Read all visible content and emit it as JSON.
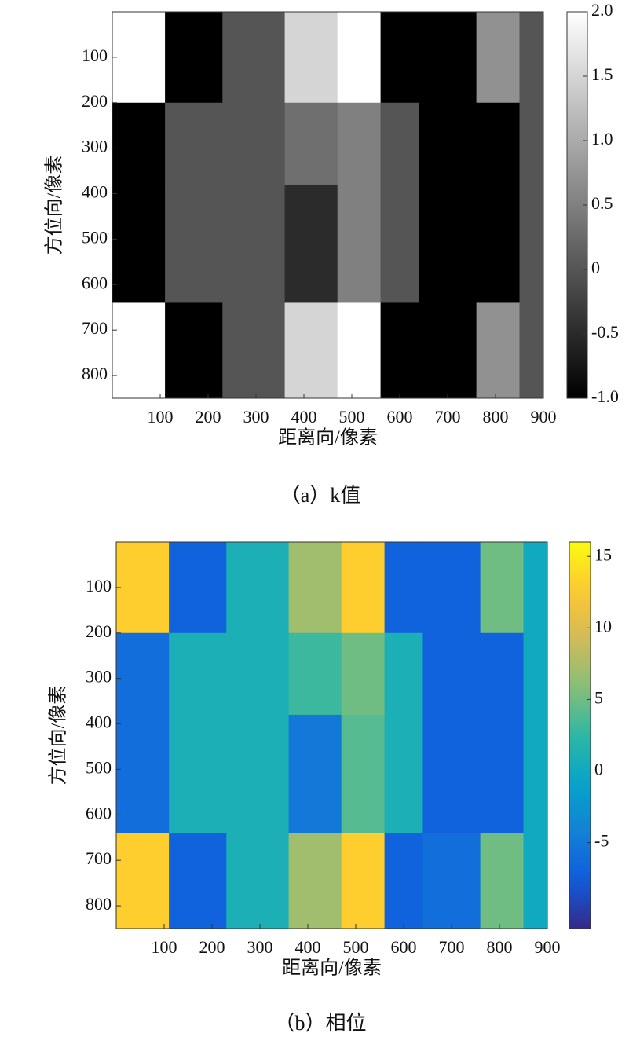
{
  "chart_data": [
    {
      "type": "heatmap",
      "caption": "（a）k值",
      "xlabel": "距离向/像素",
      "ylabel": "方位向/像素",
      "colormap": "gray",
      "y_reversed": true,
      "xlim": [
        0,
        900
      ],
      "xticks": [
        100,
        200,
        300,
        400,
        500,
        600,
        700,
        800,
        900
      ],
      "ylim": [
        0,
        850
      ],
      "yticks": [
        100,
        200,
        300,
        400,
        500,
        600,
        700,
        800
      ],
      "zlim": [
        -1,
        2
      ],
      "zticks": [
        {
          "value": -1,
          "label": "-1.0"
        },
        -0.5,
        0,
        0.5,
        {
          "value": 1,
          "label": "1.0"
        },
        1.5,
        {
          "value": 2,
          "label": "2.0"
        }
      ],
      "x_edges": [
        0,
        110,
        230,
        360,
        470,
        560,
        640,
        760,
        850,
        900
      ],
      "y_edges": [
        0,
        200,
        380,
        640,
        850
      ],
      "z": [
        [
          2,
          -1,
          0,
          1.5,
          2,
          -1,
          -1,
          0.7,
          0
        ],
        [
          -1,
          0,
          0,
          0.3,
          0.5,
          0,
          -1,
          -1,
          0
        ],
        [
          -1,
          0,
          0,
          -0.5,
          0.5,
          0,
          -1,
          -1,
          0
        ],
        [
          2,
          -1,
          0,
          1.5,
          2,
          -1,
          -1,
          0.7,
          0
        ]
      ]
    },
    {
      "type": "heatmap",
      "caption": "（b）相位",
      "xlabel": "距离向/像素",
      "ylabel": "方位向/像素",
      "colormap": "parula",
      "y_reversed": true,
      "xlim": [
        0,
        900
      ],
      "xticks": [
        100,
        200,
        300,
        400,
        500,
        600,
        700,
        800,
        900
      ],
      "ylim": [
        0,
        850
      ],
      "yticks": [
        100,
        200,
        300,
        400,
        500,
        600,
        700,
        800
      ],
      "zlim": [
        -11,
        16
      ],
      "zticks": [
        -5,
        0,
        5,
        10,
        15
      ],
      "x_edges": [
        0,
        110,
        230,
        360,
        470,
        560,
        640,
        760,
        850,
        900
      ],
      "y_edges": [
        0,
        200,
        380,
        640,
        850
      ],
      "z": [
        [
          13,
          -7,
          1,
          7,
          13,
          -7,
          -7,
          5,
          0
        ],
        [
          -6,
          1,
          1,
          3,
          5,
          1,
          -7,
          -7,
          0
        ],
        [
          -6,
          1,
          1,
          -5,
          4,
          1,
          -7,
          -7,
          0
        ],
        [
          13,
          -7,
          1,
          7,
          13,
          -7,
          -6,
          5,
          0
        ]
      ]
    }
  ]
}
